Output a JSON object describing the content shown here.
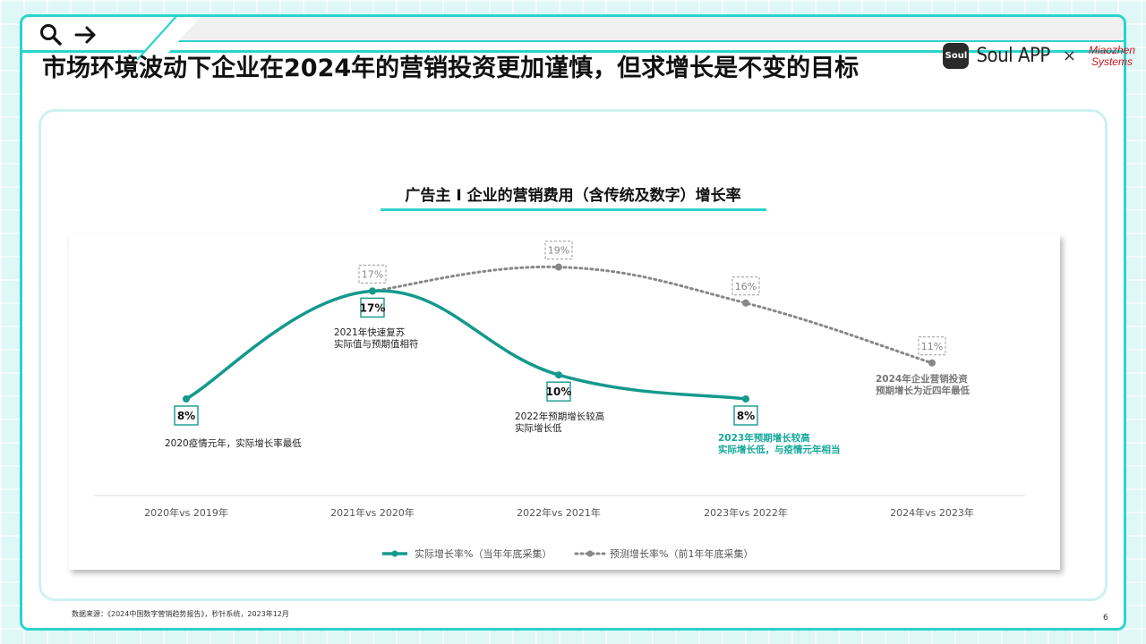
{
  "page": {
    "title": "市场环境波动下企业在2024年的营销投资更加谨慎，但求增长是不变的目标",
    "source": "数据来源：《2024中国数字营销趋势报告》，秒针系统，2023年12月",
    "page_number": "6"
  },
  "logo": {
    "soul_badge": "Soul",
    "soul_text": "Soul APP",
    "separator": "×",
    "miaozhen_line1": "Miaozhen",
    "miaozhen_line2": "Systems"
  },
  "icons": {
    "search": "search-icon",
    "forward": "arrow-right-icon"
  },
  "colors": {
    "accent": "#2bd4cc",
    "actual": "#14998d",
    "forecast": "#888888",
    "annotation_highlight": "#14a89a"
  },
  "chart_data": {
    "type": "line",
    "title": "广告主 I 企业的营销费用（含传统及数字）增长率",
    "categories": [
      "2020年vs 2019年",
      "2021年vs 2020年",
      "2022年vs 2021年",
      "2023年vs 2022年",
      "2024年vs 2023年"
    ],
    "series": [
      {
        "name": "实际增长率%（当年年底采集）",
        "style": "solid",
        "values": [
          8,
          17,
          10,
          8,
          null
        ],
        "labels": [
          "8%",
          "17%",
          "10%",
          "8%",
          ""
        ]
      },
      {
        "name": "预测增长率%（前1年年底采集）",
        "style": "dotted",
        "values": [
          null,
          17,
          19,
          16,
          11
        ],
        "labels": [
          "",
          "17%",
          "19%",
          "16%",
          "11%"
        ]
      }
    ],
    "annotations": [
      {
        "lines": [
          "2020疫情元年，实际增长率最低"
        ],
        "highlight": false
      },
      {
        "lines": [
          "2021年快速复苏",
          "实际值与预期值相符"
        ],
        "highlight": false
      },
      {
        "lines": [
          "2022年预期增长较高",
          "实际增长低"
        ],
        "highlight": false
      },
      {
        "lines": [
          "2023年预期增长较高",
          "实际增长低，与疫情元年相当"
        ],
        "highlight": true
      },
      {
        "lines": [
          "2024年企业营销投资",
          "预期增长为近四年最低"
        ],
        "highlight": false
      }
    ],
    "grid": false,
    "legend_position": "bottom"
  }
}
